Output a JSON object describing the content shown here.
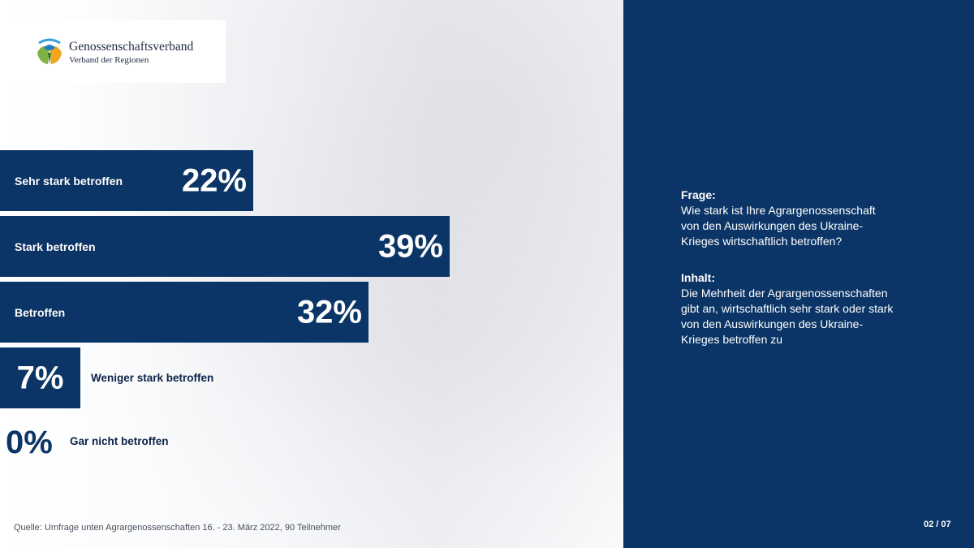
{
  "logo": {
    "name": "Genossenschaftsverband",
    "subtitle": "Verband der Regionen",
    "icon": "leaf-logo-icon"
  },
  "chart_data": {
    "type": "bar",
    "orientation": "horizontal",
    "categories": [
      "Sehr stark betroffen",
      "Stark betroffen",
      "Betroffen",
      "Weniger stark betroffen",
      "Gar nicht betroffen"
    ],
    "values": [
      22,
      39,
      32,
      7,
      0
    ],
    "value_labels": [
      "22%",
      "39%",
      "32%",
      "7%",
      "0%"
    ],
    "unit": "%",
    "bar_color": "#0b3566"
  },
  "source": "Quelle: Umfrage unten Agrargenossenschaften 16. - 23. März 2022, 90 Teilnehmer",
  "panel": {
    "question_heading": "Frage:",
    "question_lines": [
      "Wie stark ist Ihre Agrargenossenschaft",
      "von den Auswirkungen des Ukraine-",
      "Krieges wirtschaftlich betroffen?"
    ],
    "content_heading": "Inhalt:",
    "content_lines": [
      "Die Mehrheit der Agrargenossenschaften",
      "gibt an, wirtschaftlich sehr stark oder stark",
      "von den Auswirkungen des Ukraine-",
      "Krieges betroffen zu"
    ],
    "background": "#0b3566"
  },
  "page_number": "02 / 07"
}
